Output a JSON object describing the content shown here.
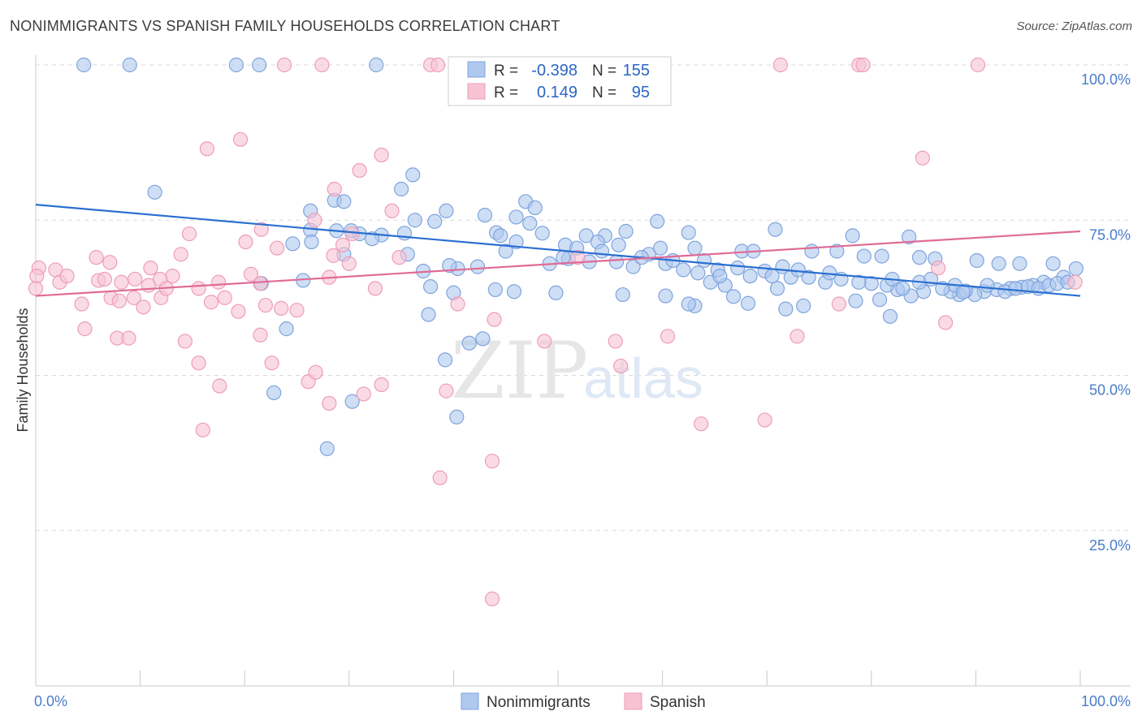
{
  "title": "NONIMMIGRANTS VS SPANISH FAMILY HOUSEHOLDS CORRELATION CHART",
  "source": "Source: ZipAtlas.com",
  "watermark": {
    "zip": "ZIP",
    "atlas": "atlas"
  },
  "colors": {
    "blue_fill": "#aec8ee",
    "blue_stroke": "#7fa4dc",
    "blue_line": "#2a6fd1",
    "pink_fill": "#f7c3d3",
    "pink_stroke": "#ee9db6",
    "pink_line": "#e06b96",
    "grid": "#d9d9d9",
    "axis_text": "#4a7cc9"
  },
  "stats": {
    "nonimmigrants": {
      "r_label": "R =",
      "r": "-0.398",
      "n_label": "N =",
      "n": "155"
    },
    "spanish": {
      "r_label": "R =",
      "r": "0.149",
      "n_label": "N =",
      "n": "95"
    }
  },
  "chart_data": {
    "type": "scatter",
    "title": "NONIMMIGRANTS VS SPANISH FAMILY HOUSEHOLDS CORRELATION CHART",
    "xlabel": "",
    "ylabel": "Family Households",
    "xlim": [
      0,
      100
    ],
    "ylim": [
      0,
      100
    ],
    "x_tick_labels": [
      "0.0%",
      "100.0%"
    ],
    "y_ticks": [
      25,
      50,
      75,
      100
    ],
    "y_tick_labels": [
      "25.0%",
      "50.0%",
      "75.0%",
      "100.0%"
    ],
    "grid": true,
    "legend": [
      "Nonimmigrants",
      "Spanish"
    ],
    "series": [
      {
        "name": "Nonimmigrants",
        "trend": [
          [
            0,
            77.5
          ],
          [
            100,
            62.8
          ]
        ],
        "points": [
          [
            4.6,
            100
          ],
          [
            9.0,
            100
          ],
          [
            19.2,
            100
          ],
          [
            21.4,
            100
          ],
          [
            32.6,
            100
          ],
          [
            11.4,
            79.5
          ],
          [
            36.1,
            82.3
          ],
          [
            35.0,
            80.0
          ],
          [
            28.6,
            78.2
          ],
          [
            29.5,
            78.0
          ],
          [
            46.9,
            78.0
          ],
          [
            47.8,
            77.0
          ],
          [
            26.3,
            76.5
          ],
          [
            39.3,
            76.5
          ],
          [
            43.0,
            75.8
          ],
          [
            46.0,
            75.5
          ],
          [
            36.3,
            75.0
          ],
          [
            38.2,
            74.8
          ],
          [
            59.5,
            74.8
          ],
          [
            47.3,
            74.5
          ],
          [
            26.3,
            73.4
          ],
          [
            28.8,
            73.3
          ],
          [
            31.0,
            72.8
          ],
          [
            33.1,
            72.6
          ],
          [
            35.3,
            72.9
          ],
          [
            44.1,
            73.0
          ],
          [
            48.5,
            72.9
          ],
          [
            56.5,
            73.2
          ],
          [
            62.5,
            73.0
          ],
          [
            70.8,
            73.5
          ],
          [
            78.2,
            72.5
          ],
          [
            83.6,
            72.3
          ],
          [
            52.7,
            72.5
          ],
          [
            54.5,
            72.5
          ],
          [
            53.8,
            71.5
          ],
          [
            55.8,
            71.0
          ],
          [
            50.7,
            71.0
          ],
          [
            51.8,
            70.5
          ],
          [
            63.1,
            70.5
          ],
          [
            67.6,
            70.0
          ],
          [
            68.7,
            70.0
          ],
          [
            74.3,
            70.0
          ],
          [
            76.7,
            70.0
          ],
          [
            79.3,
            69.2
          ],
          [
            81.0,
            69.2
          ],
          [
            84.6,
            69.0
          ],
          [
            86.1,
            68.8
          ],
          [
            90.1,
            68.5
          ],
          [
            92.2,
            68.0
          ],
          [
            94.2,
            68.0
          ],
          [
            97.4,
            68.0
          ],
          [
            99.6,
            67.2
          ],
          [
            98.4,
            65.8
          ],
          [
            96.5,
            65.0
          ],
          [
            95.5,
            64.5
          ],
          [
            94.4,
            64.2
          ],
          [
            93.3,
            64.0
          ],
          [
            92.0,
            63.8
          ],
          [
            90.8,
            63.5
          ],
          [
            89.9,
            63.0
          ],
          [
            88.4,
            63.0
          ],
          [
            87.6,
            63.5
          ],
          [
            85.0,
            63.5
          ],
          [
            83.8,
            62.8
          ],
          [
            82.5,
            63.8
          ],
          [
            81.5,
            64.5
          ],
          [
            80.0,
            64.8
          ],
          [
            78.8,
            65.0
          ],
          [
            77.1,
            65.5
          ],
          [
            75.6,
            65.0
          ],
          [
            74.0,
            65.8
          ],
          [
            72.3,
            65.8
          ],
          [
            71.0,
            64.0
          ],
          [
            69.8,
            66.8
          ],
          [
            68.4,
            66.0
          ],
          [
            67.2,
            67.3
          ],
          [
            65.3,
            67.0
          ],
          [
            64.6,
            65.0
          ],
          [
            63.4,
            66.5
          ],
          [
            62.0,
            67.0
          ],
          [
            60.3,
            68.0
          ],
          [
            58.7,
            69.5
          ],
          [
            57.2,
            67.5
          ],
          [
            55.6,
            68.3
          ],
          [
            53.0,
            68.3
          ],
          [
            51.0,
            68.8
          ],
          [
            49.2,
            68.0
          ],
          [
            42.3,
            67.5
          ],
          [
            40.4,
            67.2
          ],
          [
            37.1,
            66.8
          ],
          [
            32.2,
            72.0
          ],
          [
            26.4,
            71.5
          ],
          [
            24.6,
            71.2
          ],
          [
            29.5,
            69.5
          ],
          [
            35.6,
            69.5
          ],
          [
            30.2,
            73.3
          ],
          [
            25.6,
            65.3
          ],
          [
            21.6,
            64.8
          ],
          [
            37.8,
            64.3
          ],
          [
            39.6,
            67.7
          ],
          [
            44.0,
            63.8
          ],
          [
            45.8,
            63.5
          ],
          [
            49.8,
            63.3
          ],
          [
            56.2,
            63.0
          ],
          [
            60.3,
            62.8
          ],
          [
            66.8,
            62.7
          ],
          [
            68.2,
            61.6
          ],
          [
            71.8,
            60.7
          ],
          [
            73.5,
            61.2
          ],
          [
            78.5,
            62.0
          ],
          [
            80.8,
            62.2
          ],
          [
            81.8,
            59.5
          ],
          [
            63.1,
            61.2
          ],
          [
            62.5,
            61.5
          ],
          [
            40.0,
            63.3
          ],
          [
            37.6,
            59.8
          ],
          [
            24.0,
            57.5
          ],
          [
            41.5,
            55.2
          ],
          [
            42.8,
            55.9
          ],
          [
            39.2,
            52.5
          ],
          [
            22.8,
            47.2
          ],
          [
            30.3,
            45.8
          ],
          [
            40.3,
            43.3
          ],
          [
            27.9,
            38.2
          ],
          [
            84.6,
            65.0
          ],
          [
            85.7,
            65.5
          ],
          [
            88.0,
            64.5
          ],
          [
            89.0,
            63.6
          ],
          [
            91.1,
            64.5
          ],
          [
            92.8,
            63.5
          ],
          [
            93.8,
            64.0
          ],
          [
            95.0,
            64.3
          ],
          [
            96.0,
            64.0
          ],
          [
            97.0,
            64.5
          ],
          [
            97.8,
            64.8
          ],
          [
            98.8,
            65.0
          ],
          [
            86.8,
            64.0
          ],
          [
            88.8,
            63.4
          ],
          [
            82.0,
            65.5
          ],
          [
            83.0,
            64.0
          ],
          [
            76.0,
            66.5
          ],
          [
            73.0,
            67.0
          ],
          [
            70.5,
            66.0
          ],
          [
            71.5,
            67.5
          ],
          [
            66.0,
            64.5
          ],
          [
            65.5,
            66.0
          ],
          [
            64.0,
            68.5
          ],
          [
            61.0,
            68.5
          ],
          [
            59.8,
            70.5
          ],
          [
            58.0,
            69.0
          ],
          [
            54.2,
            70.0
          ],
          [
            50.5,
            69.0
          ],
          [
            46.0,
            71.5
          ],
          [
            45.0,
            70.0
          ],
          [
            44.5,
            72.5
          ]
        ]
      },
      {
        "name": "Spanish",
        "trend": [
          [
            0,
            62.8
          ],
          [
            100,
            73.2
          ]
        ],
        "points": [
          [
            23.8,
            100
          ],
          [
            27.4,
            100
          ],
          [
            37.8,
            100
          ],
          [
            53.0,
            100
          ],
          [
            71.3,
            100
          ],
          [
            78.8,
            100
          ],
          [
            79.2,
            100
          ],
          [
            90.2,
            100
          ],
          [
            38.5,
            100
          ],
          [
            19.6,
            88.0
          ],
          [
            16.4,
            86.5
          ],
          [
            33.1,
            85.5
          ],
          [
            84.9,
            85.0
          ],
          [
            31.0,
            83.0
          ],
          [
            28.6,
            80.0
          ],
          [
            34.1,
            76.5
          ],
          [
            26.7,
            75.0
          ],
          [
            21.6,
            73.5
          ],
          [
            14.7,
            72.8
          ],
          [
            20.1,
            71.5
          ],
          [
            29.4,
            71.0
          ],
          [
            30.3,
            72.8
          ],
          [
            23.1,
            70.5
          ],
          [
            13.9,
            69.5
          ],
          [
            28.5,
            69.3
          ],
          [
            34.8,
            69.0
          ],
          [
            51.9,
            69.0
          ],
          [
            5.8,
            69.0
          ],
          [
            7.1,
            68.2
          ],
          [
            0.3,
            67.3
          ],
          [
            1.9,
            67.0
          ],
          [
            11.0,
            67.3
          ],
          [
            20.6,
            66.3
          ],
          [
            0.1,
            66.0
          ],
          [
            6.0,
            65.3
          ],
          [
            13.1,
            66.0
          ],
          [
            11.9,
            65.5
          ],
          [
            2.3,
            65.0
          ],
          [
            8.2,
            65.0
          ],
          [
            9.5,
            65.5
          ],
          [
            6.6,
            65.5
          ],
          [
            10.8,
            64.5
          ],
          [
            0.0,
            64.0
          ],
          [
            15.6,
            64.0
          ],
          [
            21.5,
            64.8
          ],
          [
            28.1,
            65.8
          ],
          [
            32.5,
            64.0
          ],
          [
            99.5,
            65.0
          ],
          [
            86.4,
            67.3
          ],
          [
            4.4,
            61.5
          ],
          [
            7.2,
            62.5
          ],
          [
            9.4,
            62.5
          ],
          [
            12.0,
            62.5
          ],
          [
            16.8,
            61.8
          ],
          [
            18.1,
            62.5
          ],
          [
            10.3,
            61.0
          ],
          [
            19.4,
            60.3
          ],
          [
            22.0,
            61.3
          ],
          [
            23.5,
            60.8
          ],
          [
            40.4,
            61.5
          ],
          [
            76.9,
            61.5
          ],
          [
            4.7,
            57.5
          ],
          [
            7.8,
            56.0
          ],
          [
            8.9,
            56.0
          ],
          [
            14.3,
            55.5
          ],
          [
            21.5,
            56.5
          ],
          [
            43.9,
            59.0
          ],
          [
            48.7,
            55.5
          ],
          [
            55.5,
            55.5
          ],
          [
            60.5,
            56.3
          ],
          [
            72.9,
            56.3
          ],
          [
            87.1,
            58.5
          ],
          [
            15.6,
            52.0
          ],
          [
            22.6,
            52.0
          ],
          [
            26.1,
            49.0
          ],
          [
            26.8,
            50.5
          ],
          [
            33.1,
            48.5
          ],
          [
            31.4,
            47.0
          ],
          [
            39.3,
            47.5
          ],
          [
            17.6,
            48.3
          ],
          [
            28.1,
            45.5
          ],
          [
            56.0,
            51.5
          ],
          [
            63.7,
            42.2
          ],
          [
            69.8,
            42.8
          ],
          [
            16.0,
            41.2
          ],
          [
            43.7,
            36.2
          ],
          [
            38.7,
            33.5
          ],
          [
            43.7,
            14.0
          ],
          [
            8.0,
            62.0
          ],
          [
            3.0,
            66.0
          ],
          [
            12.5,
            64.0
          ],
          [
            25.0,
            60.5
          ],
          [
            30.0,
            68.0
          ],
          [
            17.5,
            65.0
          ]
        ]
      }
    ]
  }
}
